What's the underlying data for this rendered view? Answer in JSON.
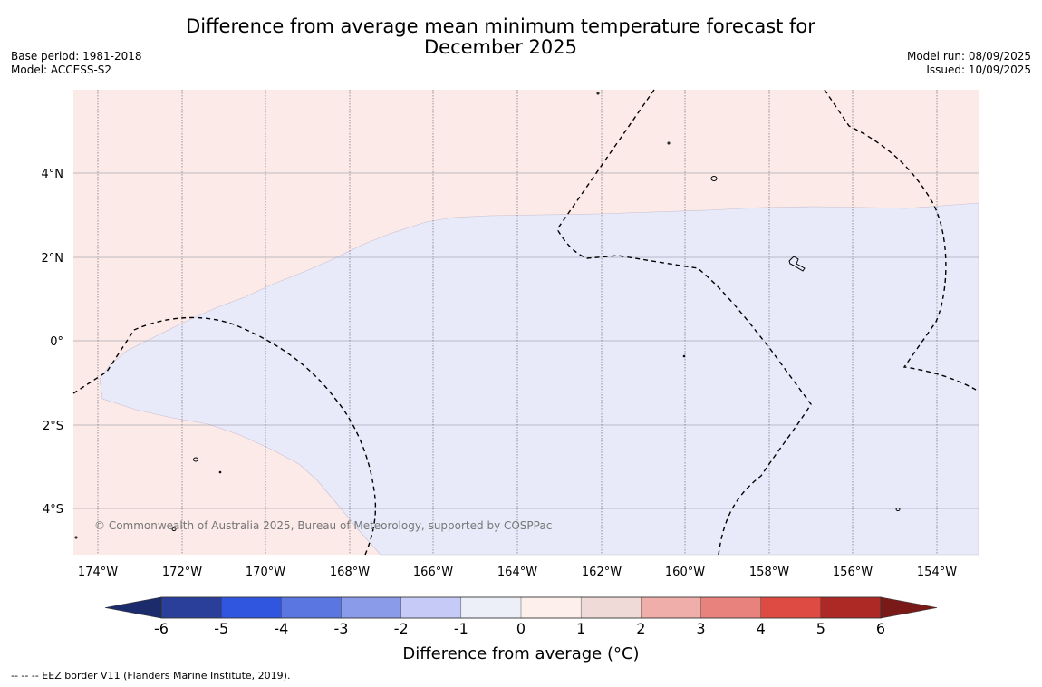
{
  "title_line1": "Difference from average mean minimum temperature forecast for",
  "title_line2": "December 2025",
  "base_period": "Base period: 1981-2018",
  "model": "Model: ACCESS-S2",
  "model_run": "Model run: 08/09/2025",
  "issued": "Issued: 10/09/2025",
  "copyright": "© Commonwealth of Australia 2025, Bureau of Meteorology, supported by COSPPac",
  "colors": {
    "warm_fill": "#fbeae8",
    "cool_fill": "#e8eaf9"
  },
  "map": {
    "lon_ticks": [
      "174°W",
      "172°W",
      "170°W",
      "168°W",
      "166°W",
      "164°W",
      "162°W",
      "160°W",
      "158°W",
      "156°W",
      "154°W"
    ],
    "lat_ticks": [
      "4°N",
      "2°N",
      "0°",
      "2°S",
      "4°S"
    ]
  },
  "colorbar": {
    "labels": [
      "-6",
      "-5",
      "-4",
      "-3",
      "-2",
      "-1",
      "0",
      "1",
      "2",
      "3",
      "4",
      "5",
      "6"
    ],
    "colors": [
      "#2a3f9a",
      "#3056e0",
      "#5a76e0",
      "#8a9bea",
      "#c5cbf6",
      "#eceef8",
      "#fcefec",
      "#f0dad7",
      "#f0aeaa",
      "#e8827c",
      "#de4b42",
      "#ac2926"
    ],
    "low_extend_color": "#1c2b6b",
    "high_extend_color": "#7a1a18",
    "label": "Difference from average (°C)"
  },
  "footer": "--  --  -- EEZ border V11 (Flanders Marine Institute, 2019)."
}
